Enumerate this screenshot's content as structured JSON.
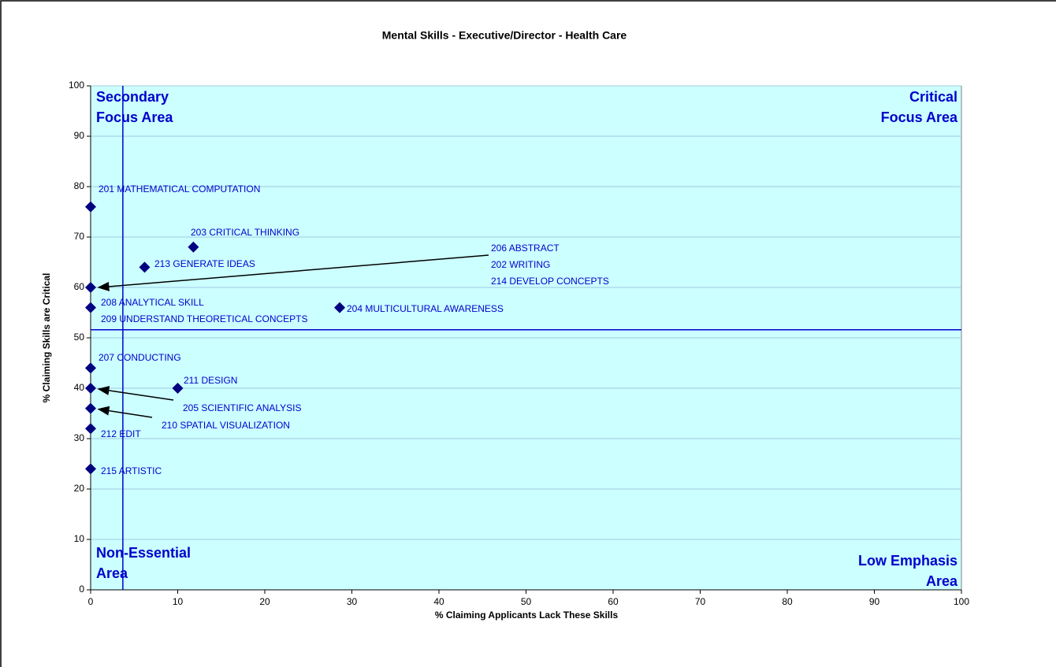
{
  "chart_data": {
    "type": "scatter",
    "title": "Mental Skills - Executive/Director -  Health Care",
    "x_label": "% Claiming Applicants Lack These Skills",
    "y_label": "% Claiming Skills are Critical",
    "xlim": [
      0,
      100
    ],
    "xticks": [
      0,
      10,
      20,
      30,
      40,
      50,
      60,
      70,
      80,
      90,
      100
    ],
    "ylim": [
      0,
      100
    ],
    "yticks": [
      0,
      10,
      20,
      30,
      40,
      50,
      60,
      70,
      80,
      90,
      100
    ],
    "grid": true,
    "color": "#000080",
    "background": "#ccffff",
    "divider_color": "#0000cc",
    "dividers": {
      "x": 3.7,
      "y": 51.6
    },
    "quadrant_labels": {
      "top_left": [
        "Secondary",
        "Focus Area"
      ],
      "top_right": [
        "Critical",
        "Focus Area"
      ],
      "bottom_left": [
        "Non-Essential",
        "Area"
      ],
      "bottom_right": [
        "Low Emphasis",
        "Area"
      ]
    },
    "points": [
      {
        "x": 0,
        "y": 76,
        "labels": [
          "201 MATHEMATICAL COMPUTATION"
        ]
      },
      {
        "x": 11.8,
        "y": 68,
        "labels": [
          "203 CRITICAL THINKING"
        ]
      },
      {
        "x": 6.2,
        "y": 64,
        "labels": [
          "213 GENERATE IDEAS"
        ]
      },
      {
        "x": 0,
        "y": 60,
        "labels": [
          "206 ABSTRACT",
          "202 WRITING",
          "214 DEVELOP CONCEPTS"
        ]
      },
      {
        "x": 0,
        "y": 56,
        "labels": [
          "208 ANALYTICAL SKILL",
          "209 UNDERSTAND THEORETICAL CONCEPTS"
        ]
      },
      {
        "x": 28.6,
        "y": 56,
        "labels": [
          "204 MULTICULTURAL AWARENESS"
        ]
      },
      {
        "x": 0,
        "y": 44,
        "labels": [
          "207 CONDUCTING"
        ]
      },
      {
        "x": 10,
        "y": 40,
        "labels": [
          "211 DESIGN"
        ]
      },
      {
        "x": 0,
        "y": 40,
        "labels": [
          "205 SCIENTIFIC ANALYSIS"
        ]
      },
      {
        "x": 0,
        "y": 36,
        "labels": [
          "210 SPATIAL VISUALIZATION"
        ]
      },
      {
        "x": 0,
        "y": 32,
        "labels": [
          "212 EDIT"
        ]
      },
      {
        "x": 0,
        "y": 24,
        "labels": [
          "215 ARTISTIC"
        ]
      }
    ]
  }
}
